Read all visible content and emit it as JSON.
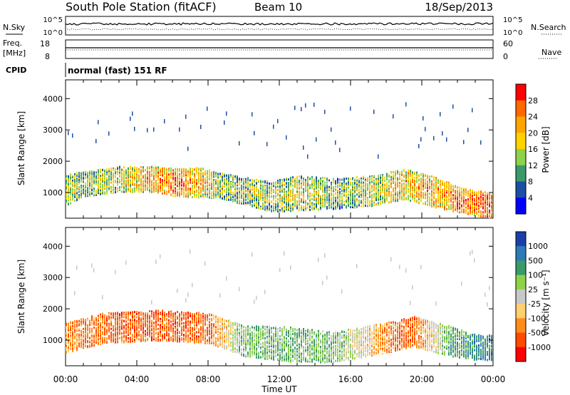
{
  "header": {
    "station": "South Pole Station (fitACF)",
    "beam": "Beam 10",
    "date": "18/Sep/2013"
  },
  "summary_panels": {
    "nsky_label": "N.Sky",
    "nsearch_label": "N.Search",
    "nsky_ticks": [
      "10^5",
      "10^0"
    ],
    "nsearch_ticks": [
      "10^5",
      "10^0"
    ],
    "freq_label_line1": "Freq.",
    "freq_label_line2": "[MHz]",
    "freq_ticks": [
      "18",
      "8"
    ],
    "nave_label": "Nave",
    "nave_ticks": [
      "60",
      "0"
    ],
    "cpid_label": "CPID",
    "cpid_text": "normal (fast) 151 RF"
  },
  "chart_data": [
    {
      "type": "heatmap",
      "quantity": "Power",
      "ylabel": "Slant Range [km]",
      "xlabel": "",
      "colorbar_label": "Power [dB]",
      "colorbar_ticks": [
        "28",
        "24",
        "20",
        "16",
        "12",
        "8",
        "4"
      ],
      "colorbar_colors": [
        "#ff0000",
        "#ff6a00",
        "#ffa500",
        "#ffd200",
        "#8ed24a",
        "#3a9a6a",
        "#1b4fa3",
        "#0000ff"
      ],
      "x_ticks": [
        "00:00",
        "04:00",
        "08:00",
        "12:00",
        "16:00",
        "20:00",
        "00:00"
      ],
      "xlim_hours": [
        0,
        24
      ],
      "y_ticks": [
        "4000",
        "3000",
        "2000",
        "1000"
      ],
      "ylim": [
        180,
        4600
      ],
      "bands": [
        {
          "t": 0.0,
          "r": 1100,
          "w": 300,
          "v": 0.55
        },
        {
          "t": 1.0,
          "r": 1300,
          "w": 250,
          "v": 0.5
        },
        {
          "t": 3.0,
          "r": 1450,
          "w": 250,
          "v": 0.55
        },
        {
          "t": 5.0,
          "r": 1450,
          "w": 250,
          "v": 0.75
        },
        {
          "t": 6.2,
          "r": 1350,
          "w": 280,
          "v": 0.85
        },
        {
          "t": 7.5,
          "r": 1350,
          "w": 300,
          "v": 0.7
        },
        {
          "t": 9.0,
          "r": 1200,
          "w": 250,
          "v": 0.45
        },
        {
          "t": 11.5,
          "r": 900,
          "w": 300,
          "v": 0.5
        },
        {
          "t": 13.0,
          "r": 1000,
          "w": 350,
          "v": 0.6
        },
        {
          "t": 15.5,
          "r": 1000,
          "w": 300,
          "v": 0.45
        },
        {
          "t": 17.5,
          "r": 1100,
          "w": 300,
          "v": 0.55
        },
        {
          "t": 19.0,
          "r": 1300,
          "w": 300,
          "v": 0.7
        },
        {
          "t": 21.0,
          "r": 1000,
          "w": 300,
          "v": 0.75
        },
        {
          "t": 22.0,
          "r": 800,
          "w": 250,
          "v": 0.85
        },
        {
          "t": 24.0,
          "r": 600,
          "w": 250,
          "v": 0.9
        }
      ]
    },
    {
      "type": "heatmap",
      "quantity": "Velocity",
      "ylabel": "Slant Range [km]",
      "xlabel": "Time UT",
      "colorbar_label": "Velocity [m s⁻¹]",
      "colorbar_ticks": [
        "1000",
        "500",
        "100",
        "25",
        "-25",
        "-100",
        "-500",
        "-1000"
      ],
      "colorbar_colors": [
        "#1b3fa8",
        "#2e7ab8",
        "#3a9a6a",
        "#8ed24a",
        "#c8c8c8",
        "#ffd070",
        "#ff8c1a",
        "#ff4a00",
        "#ff0000"
      ],
      "x_ticks": [
        "00:00",
        "04:00",
        "08:00",
        "12:00",
        "16:00",
        "20:00",
        "00:00"
      ],
      "xlim_hours": [
        0,
        24
      ],
      "y_ticks": [
        "4000",
        "3000",
        "2000",
        "1000"
      ],
      "ylim": [
        180,
        4600
      ],
      "bands": [
        {
          "t": 0.0,
          "r": 1100,
          "w": 300,
          "v": -0.45
        },
        {
          "t": 2.0,
          "r": 1400,
          "w": 300,
          "v": -0.6
        },
        {
          "t": 5.0,
          "r": 1500,
          "w": 300,
          "v": -0.7
        },
        {
          "t": 8.0,
          "r": 1400,
          "w": 300,
          "v": -0.6
        },
        {
          "t": 10.0,
          "r": 1000,
          "w": 300,
          "v": 0.3
        },
        {
          "t": 12.5,
          "r": 900,
          "w": 350,
          "v": 0.35
        },
        {
          "t": 15.0,
          "r": 800,
          "w": 300,
          "v": 0.3
        },
        {
          "t": 18.0,
          "r": 1100,
          "w": 300,
          "v": -0.5
        },
        {
          "t": 19.5,
          "r": 1300,
          "w": 300,
          "v": -0.65
        },
        {
          "t": 21.5,
          "r": 1000,
          "w": 300,
          "v": 0.4
        },
        {
          "t": 23.0,
          "r": 800,
          "w": 250,
          "v": 0.6
        }
      ]
    }
  ]
}
